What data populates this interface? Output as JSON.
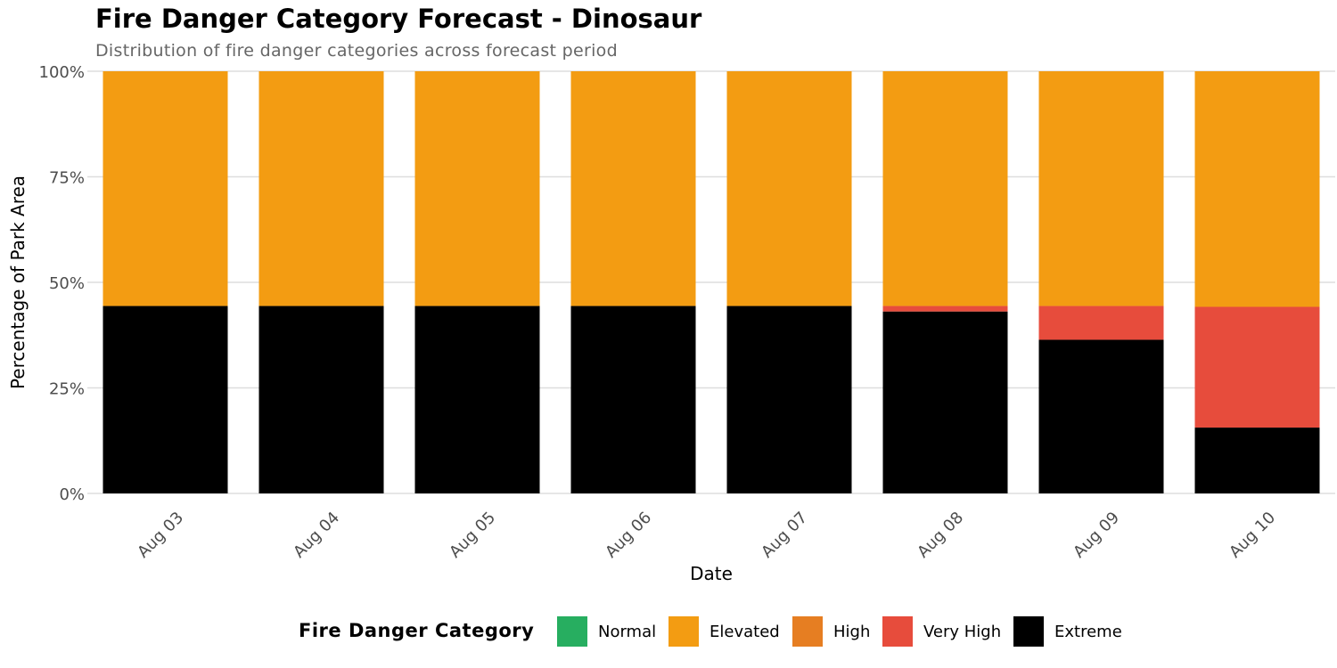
{
  "chart_data": {
    "type": "bar",
    "stacked": "percent",
    "title": "Fire Danger Category Forecast - Dinosaur",
    "subtitle": "Distribution of fire danger categories across forecast period",
    "xlabel": "Date",
    "ylabel": "Percentage of Park Area",
    "ylim": [
      0,
      100
    ],
    "yticks": [
      "0%",
      "25%",
      "50%",
      "75%",
      "100%"
    ],
    "ytick_values": [
      0,
      25,
      50,
      75,
      100
    ],
    "grid": true,
    "legend_position": "bottom",
    "legend_title": "Fire Danger Category",
    "categories": [
      "Aug 03",
      "Aug 04",
      "Aug 05",
      "Aug 06",
      "Aug 07",
      "Aug 08",
      "Aug 09",
      "Aug 10"
    ],
    "series": [
      {
        "name": "Normal",
        "color": "#27ae60",
        "values": [
          0,
          0,
          0,
          0,
          0,
          0,
          0,
          0
        ]
      },
      {
        "name": "Elevated",
        "color": "#f39c12",
        "values": [
          55.6,
          55.6,
          55.6,
          55.6,
          55.6,
          55.6,
          55.6,
          55.8
        ]
      },
      {
        "name": "High",
        "color": "#e67e22",
        "values": [
          0,
          0,
          0,
          0,
          0,
          0,
          0,
          0
        ]
      },
      {
        "name": "Very High",
        "color": "#e74c3c",
        "values": [
          0,
          0,
          0,
          0,
          0,
          1.3,
          8.0,
          28.6
        ]
      },
      {
        "name": "Extreme",
        "color": "#000000",
        "values": [
          44.4,
          44.4,
          44.4,
          44.4,
          44.4,
          43.1,
          36.4,
          15.6
        ]
      }
    ]
  }
}
